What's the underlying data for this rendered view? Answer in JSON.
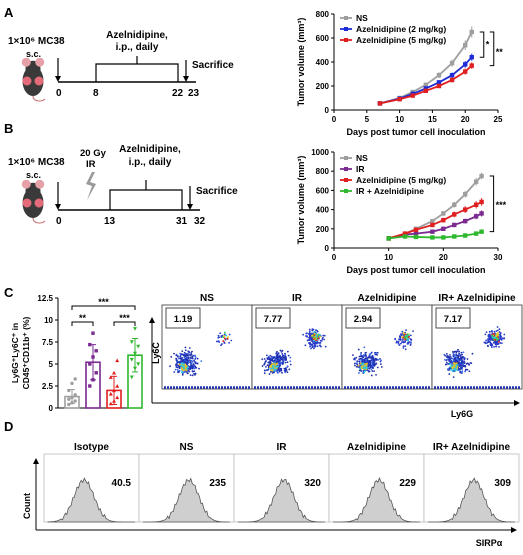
{
  "panels": {
    "A": {
      "letter": "A",
      "schema": {
        "cells": "1×10⁶ MC38",
        "route": "s.c.",
        "treatment_line1": "Azelnidipine,",
        "treatment_line2": "i.p., daily",
        "day_start": "0",
        "day_treat_start": "8",
        "day_treat_end": "22",
        "day_sac": "23",
        "sacrifice": "Sacrifice"
      }
    },
    "B": {
      "letter": "B",
      "schema": {
        "cells": "1×10⁶ MC38",
        "route": "s.c.",
        "ir_dose": "20 Gy",
        "ir_label": "IR",
        "treatment_line1": "Azelnidipine,",
        "treatment_line2": "i.p., daily",
        "day_start": "0",
        "day_treat_start": "13",
        "day_treat_end": "31",
        "day_sac": "32",
        "sacrifice": "Sacrifice"
      }
    },
    "C": {
      "letter": "C",
      "bar_ylabel_line1": "Ly6G⁺Ly6C⁺ in",
      "bar_ylabel_line2": "CD45⁺CD11b⁺ (%)",
      "sig_top": "***",
      "sig_left": "**",
      "sig_right": "***",
      "flow_xlabel": "Ly6G",
      "flow_ylabel": "Ly6C",
      "flow_panels": [
        {
          "title": "NS",
          "value": "1.19"
        },
        {
          "title": "IR",
          "value": "7.77"
        },
        {
          "title": "Azelnidipine",
          "value": "2.94"
        },
        {
          "title": "IR+ Azelnidipine",
          "value": "7.17"
        }
      ]
    },
    "D": {
      "letter": "D",
      "ylabel": "Count",
      "xlabel": "SIRPα",
      "histograms": [
        {
          "title": "Isotype",
          "value": "40.5"
        },
        {
          "title": "NS",
          "value": "235"
        },
        {
          "title": "IR",
          "value": "320"
        },
        {
          "title": "Azelnidipine",
          "value": "229"
        },
        {
          "title": "IR+ Azelnidipine",
          "value": "309"
        }
      ]
    }
  },
  "colors": {
    "ns": "#9e9e9e",
    "low": "#1c2bd6",
    "high": "#e02020",
    "ir": "#7a2a90",
    "combo": "#2eb82e",
    "hist_fill": "#cfcfcf"
  },
  "chart_data": [
    {
      "id": "A",
      "type": "line",
      "xlabel": "Days post tumor cell inoculation",
      "ylabel": "Tumor volume (mm³)",
      "xlim": [
        0,
        25
      ],
      "ylim": [
        0,
        800
      ],
      "xticks": [
        0,
        5,
        10,
        15,
        20,
        25
      ],
      "yticks": [
        0,
        200,
        400,
        600,
        800
      ],
      "significance": [
        "*",
        "**"
      ],
      "series": [
        {
          "name": "NS",
          "color": "#9e9e9e",
          "x": [
            7,
            10,
            12,
            14,
            16,
            18,
            20,
            21
          ],
          "y": [
            55,
            100,
            150,
            210,
            290,
            390,
            540,
            650
          ],
          "err": [
            8,
            12,
            15,
            20,
            25,
            30,
            40,
            45
          ]
        },
        {
          "name": "Azelnidipine (2 mg/kg)",
          "color": "#1c2bd6",
          "x": [
            7,
            10,
            12,
            14,
            16,
            18,
            20,
            21
          ],
          "y": [
            55,
            95,
            135,
            180,
            230,
            290,
            380,
            440
          ],
          "err": [
            8,
            10,
            12,
            15,
            20,
            22,
            28,
            30
          ]
        },
        {
          "name": "Azelnidipine (5 mg/kg)",
          "color": "#e02020",
          "x": [
            7,
            10,
            12,
            14,
            16,
            18,
            20,
            21
          ],
          "y": [
            55,
            90,
            120,
            160,
            200,
            250,
            320,
            370
          ],
          "err": [
            8,
            10,
            12,
            14,
            16,
            20,
            25,
            28
          ]
        }
      ]
    },
    {
      "id": "B",
      "type": "line",
      "xlabel": "Days post tumor cell inoculation",
      "ylabel": "Tumor volume (mm³)",
      "xlim": [
        0,
        30
      ],
      "ylim": [
        0,
        1000
      ],
      "xticks": [
        0,
        10,
        20,
        30
      ],
      "yticks": [
        0,
        200,
        400,
        600,
        800,
        1000
      ],
      "significance": [
        "***"
      ],
      "series": [
        {
          "name": "NS",
          "color": "#9e9e9e",
          "x": [
            10,
            13,
            15,
            18,
            20,
            22,
            24,
            26,
            27
          ],
          "y": [
            100,
            150,
            200,
            280,
            360,
            450,
            560,
            690,
            750
          ],
          "err": [
            10,
            15,
            18,
            22,
            25,
            30,
            35,
            40,
            35
          ]
        },
        {
          "name": "IR",
          "color": "#7a2a90",
          "x": [
            10,
            13,
            15,
            18,
            20,
            22,
            24,
            26,
            27
          ],
          "y": [
            100,
            140,
            150,
            170,
            200,
            240,
            280,
            330,
            360
          ],
          "err": [
            10,
            14,
            15,
            16,
            18,
            22,
            25,
            30,
            32
          ]
        },
        {
          "name": "Azelnidipine (5 mg/kg)",
          "color": "#e02020",
          "x": [
            10,
            13,
            15,
            18,
            20,
            22,
            24,
            26,
            27
          ],
          "y": [
            100,
            150,
            190,
            240,
            290,
            350,
            400,
            450,
            480
          ],
          "err": [
            10,
            14,
            18,
            22,
            25,
            30,
            35,
            38,
            40
          ]
        },
        {
          "name": "IR + Azelnidipine",
          "color": "#2eb82e",
          "x": [
            10,
            13,
            15,
            18,
            20,
            22,
            24,
            26,
            27
          ],
          "y": [
            100,
            120,
            115,
            110,
            110,
            120,
            130,
            150,
            170
          ],
          "err": [
            10,
            12,
            12,
            12,
            12,
            12,
            14,
            15,
            16
          ]
        }
      ]
    },
    {
      "id": "C",
      "type": "bar",
      "ylim": [
        0,
        12.5
      ],
      "yticks": [
        0,
        2.5,
        5,
        7.5,
        10,
        12.5
      ],
      "categories": [
        "NS",
        "IR",
        "Azelnidipine",
        "IR + Azelnidipine"
      ],
      "values": [
        1.3,
        5.2,
        2.0,
        6.0
      ],
      "err": [
        0.8,
        2.0,
        1.6,
        1.9
      ],
      "colors": [
        "#9e9e9e",
        "#7a2a90",
        "#e02020",
        "#2eb82e"
      ],
      "points": [
        [
          0.4,
          0.6,
          0.8,
          1.0,
          1.2,
          1.5,
          2.0,
          2.8,
          3.3
        ],
        [
          2.5,
          3.2,
          4.0,
          5.0,
          5.8,
          6.5,
          7.2,
          8.5
        ],
        [
          0.5,
          0.8,
          1.2,
          1.6,
          2.0,
          2.5,
          3.5,
          4.0,
          5.4
        ],
        [
          3.5,
          4.5,
          5.0,
          5.5,
          6.2,
          7.0,
          7.5,
          9.0
        ]
      ]
    }
  ]
}
